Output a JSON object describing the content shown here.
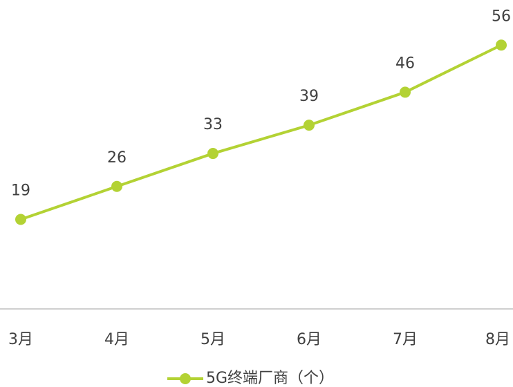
{
  "chart_data": {
    "type": "line",
    "categories": [
      "3月",
      "4月",
      "5月",
      "6月",
      "7月",
      "8月"
    ],
    "series": [
      {
        "name": "5G终端厂商（个）",
        "color": "#b3d234",
        "values": [
          19,
          26,
          33,
          39,
          46,
          56
        ]
      }
    ],
    "ylim": [
      0,
      60
    ],
    "legend": "bottom"
  }
}
